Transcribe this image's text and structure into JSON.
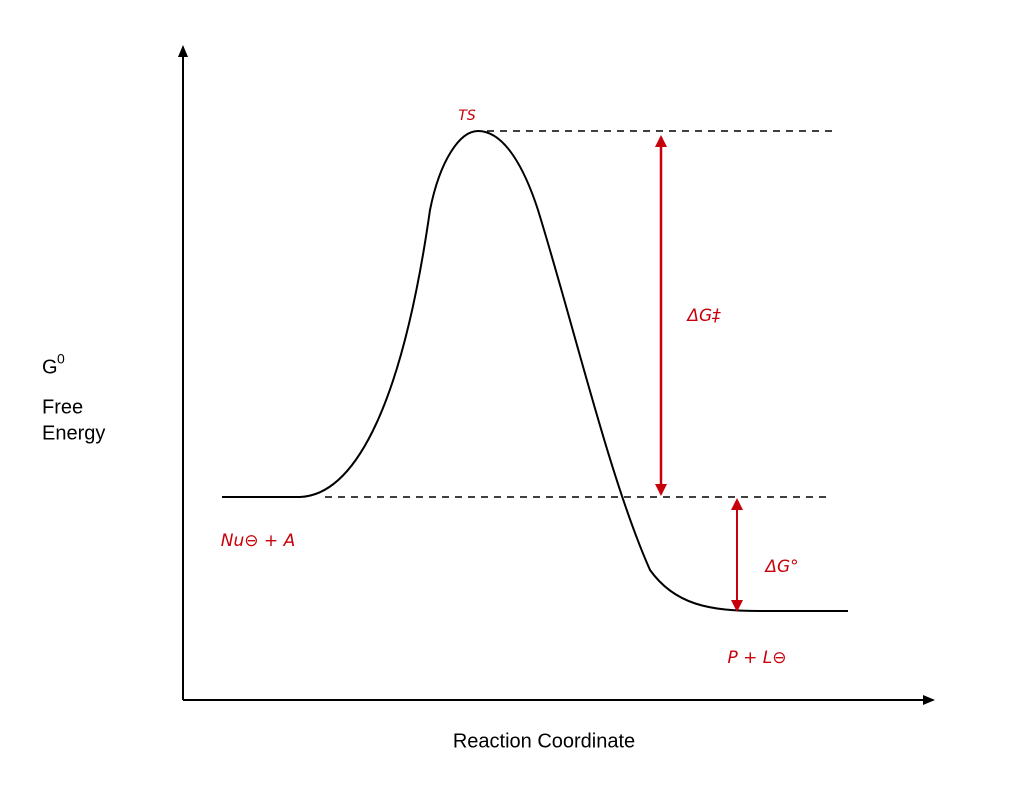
{
  "axes": {
    "y_symbol": "G",
    "y_superscript": "0",
    "y_label_line1": "Free",
    "y_label_line2": "Energy",
    "x_label": "Reaction Coordinate"
  },
  "annotations": {
    "transition_state": "TS",
    "activation_energy": "ΔG‡",
    "reaction_energy": "ΔG°",
    "reactants": "Nu⊖ + A",
    "products": "P + L⊖"
  }
}
